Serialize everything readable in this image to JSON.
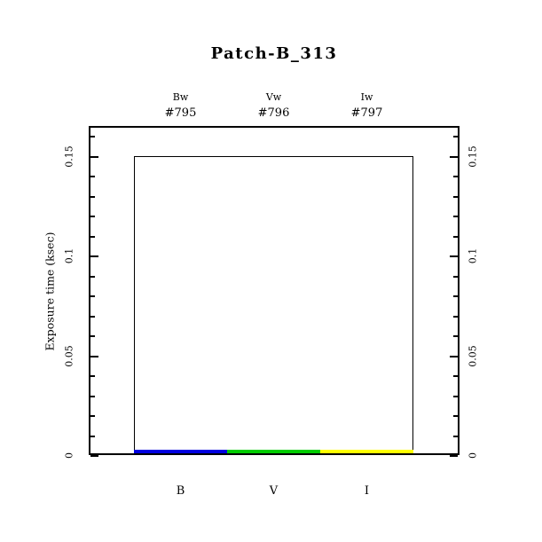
{
  "title": "Patch-B_313",
  "chart_data": {
    "type": "bar",
    "title": "Patch-B_313",
    "ylabel": "Exposure time (ksec)",
    "xlabel": "",
    "ylim": [
      0,
      0.165
    ],
    "y_major_ticks": [
      0,
      0.05,
      0.1,
      0.15
    ],
    "y_major_labels": [
      "0",
      "0.05",
      "0.1",
      "0.15"
    ],
    "y_minor_step": 0.01,
    "grid": false,
    "legend_position": "none",
    "categories": [
      "B",
      "V",
      "I"
    ],
    "outline_value_ksec": 0.15,
    "columns": [
      {
        "filter": "Bw",
        "exposure_id": "#795",
        "band": "B",
        "color": "#0000e0",
        "value_ksec": 0.002
      },
      {
        "filter": "Vw",
        "exposure_id": "#796",
        "band": "V",
        "color": "#00cc00",
        "value_ksec": 0.002
      },
      {
        "filter": "Iw",
        "exposure_id": "#797",
        "band": "I",
        "color": "#ffff00",
        "value_ksec": 0.002
      }
    ]
  }
}
